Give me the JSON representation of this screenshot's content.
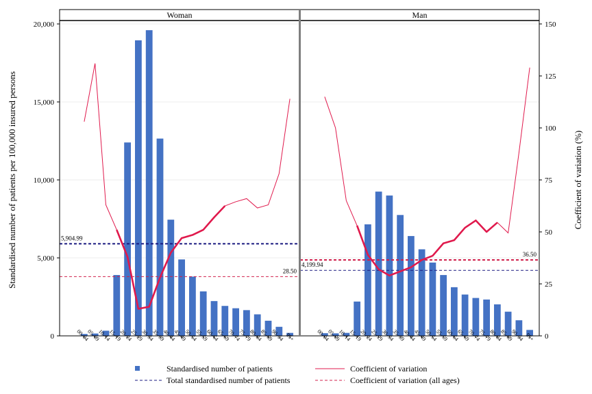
{
  "chart_data": {
    "type": "bar",
    "ylabel_left": "Standardised number of patients per 100,000 insured persons",
    "ylabel_right": "Coefficient of variation (%)",
    "ylim_left": [
      0,
      20000
    ],
    "ylim_right": [
      0,
      150
    ],
    "yticks_left": [
      "0",
      "5,000",
      "10,000",
      "15,000",
      "20,000"
    ],
    "yticks_left_values": [
      0,
      5000,
      10000,
      15000,
      20000
    ],
    "yticks_right": [
      "0",
      "25",
      "50",
      "75",
      "100",
      "125",
      "150"
    ],
    "yticks_right_values": [
      0,
      25,
      50,
      75,
      100,
      125,
      150
    ],
    "categories": [
      "00–04",
      "05–09",
      "10–14",
      "15–19",
      "20–24",
      "25–29",
      "30–34",
      "35–39",
      "40–44",
      "45–49",
      "50–54",
      "55–59",
      "60–64",
      "65–69",
      "70–74",
      "75–79",
      "80–84",
      "85–89",
      "90–94",
      "95+"
    ],
    "grid": "horizontal",
    "legend_position": "bottom",
    "legend": {
      "bars": "Standardised number of patients",
      "cv": "Coefficient of variation",
      "total": "Total standardised number of patients",
      "cv_all": "Coefficient of variation (all ages)"
    },
    "colors": {
      "bars": "#4472c4",
      "cv": "#e0194c",
      "total": "#1a1a80",
      "cv_all": "#d0214c",
      "frame": "#000000",
      "divider": "#7f7f7f"
    },
    "panels": [
      {
        "title": "Woman",
        "bars": [
          120,
          150,
          330,
          3900,
          12400,
          18950,
          19600,
          12650,
          7450,
          4900,
          3800,
          2850,
          2230,
          1920,
          1770,
          1650,
          1380,
          970,
          580,
          190
        ],
        "cv": [
          103,
          131,
          63,
          51,
          38,
          13,
          14,
          28,
          40,
          47,
          48.5,
          51,
          57,
          62.5,
          64.5,
          66,
          61.5,
          63,
          78,
          114
        ],
        "cv_thick_range": [
          3,
          13
        ],
        "total": 5904.99,
        "total_label": "5,904.99",
        "cv_all": 28.5,
        "cv_all_label": "28.50"
      },
      {
        "title": "Man",
        "bars": [
          170,
          160,
          190,
          2200,
          7150,
          9250,
          9000,
          7750,
          6400,
          5550,
          4700,
          3900,
          3120,
          2650,
          2430,
          2330,
          2020,
          1550,
          1000,
          380
        ],
        "cv": [
          115,
          100,
          65,
          53,
          39,
          32,
          29,
          31,
          33,
          36.5,
          38.5,
          44.5,
          46,
          52,
          55.5,
          50,
          54.5,
          49.5,
          88,
          129
        ],
        "cv_thick_range": [
          3,
          16
        ],
        "total": 4199.94,
        "total_label": "4,199.94",
        "cv_all": 36.5,
        "cv_all_label": "36.50"
      }
    ]
  }
}
